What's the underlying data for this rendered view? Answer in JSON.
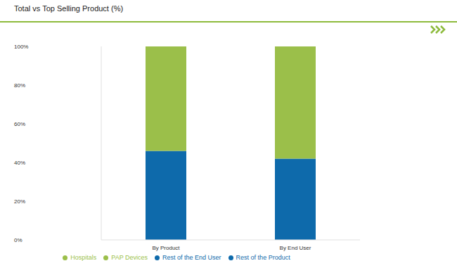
{
  "chart_data": {
    "type": "bar",
    "title": "Total vs Top Selling Product (%)",
    "categories": [
      "By Product",
      "By End User"
    ],
    "stacked": true,
    "grid": false,
    "legend": "bottom",
    "ylim": [
      0,
      100
    ],
    "yticks": [
      {
        "value": 0,
        "label": "0%"
      },
      {
        "value": 20,
        "label": "20%"
      },
      {
        "value": 40,
        "label": "40%"
      },
      {
        "value": 60,
        "label": "60%"
      },
      {
        "value": 80,
        "label": "80%"
      },
      {
        "value": 100,
        "label": "100%"
      }
    ],
    "series": [
      {
        "name": "Rest of the Product",
        "color": "#0e6aab",
        "values": [
          46,
          null
        ]
      },
      {
        "name": "PAP Devices",
        "color": "#9bbf4a",
        "values": [
          54,
          null
        ]
      },
      {
        "name": "Rest of the End User",
        "color": "#0e6aab",
        "values": [
          null,
          42
        ]
      },
      {
        "name": "Hospitals",
        "color": "#9bbf4a",
        "values": [
          null,
          58
        ]
      }
    ]
  }
}
